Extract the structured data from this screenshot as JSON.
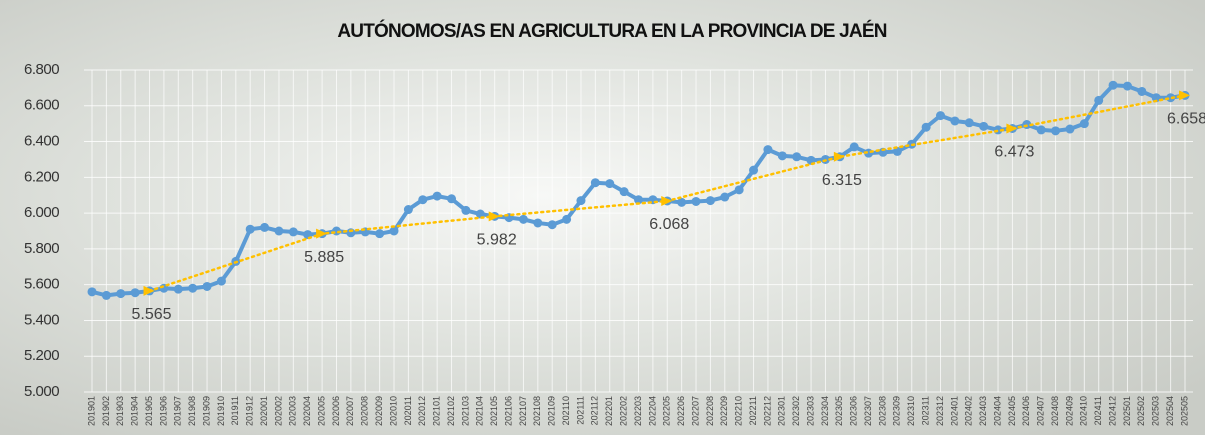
{
  "chart_data": {
    "type": "line",
    "title": "AUTÓNOMOS/AS EN AGRICULTURA EN LA PROVINCIA DE JAÉN",
    "categories": [
      "201901",
      "201902",
      "201903",
      "201904",
      "201905",
      "201906",
      "201907",
      "201908",
      "201909",
      "201910",
      "201911",
      "201912",
      "202001",
      "202002",
      "202003",
      "202004",
      "202005",
      "202006",
      "202007",
      "202008",
      "202009",
      "202010",
      "202011",
      "202012",
      "202101",
      "202102",
      "202103",
      "202104",
      "202105",
      "202106",
      "202107",
      "202108",
      "202109",
      "202110",
      "202111",
      "202112",
      "202201",
      "202202",
      "202203",
      "202204",
      "202205",
      "202206",
      "202207",
      "202208",
      "202209",
      "202210",
      "202211",
      "202212",
      "202301",
      "202302",
      "202303",
      "202304",
      "202305",
      "202306",
      "202307",
      "202308",
      "202309",
      "202310",
      "202311",
      "202312",
      "202401",
      "202402",
      "202403",
      "202404",
      "202405",
      "202406",
      "202407",
      "202408",
      "202409",
      "202410",
      "202411",
      "202412",
      "202501",
      "202502",
      "202503",
      "202504",
      "202505"
    ],
    "values": [
      5560,
      5540,
      5550,
      5555,
      5565,
      5580,
      5575,
      5580,
      5590,
      5620,
      5730,
      5910,
      5920,
      5900,
      5895,
      5880,
      5885,
      5900,
      5890,
      5895,
      5885,
      5900,
      6020,
      6075,
      6095,
      6080,
      6015,
      5995,
      5982,
      5975,
      5965,
      5945,
      5935,
      5965,
      6070,
      6170,
      6165,
      6120,
      6075,
      6075,
      6068,
      6060,
      6065,
      6070,
      6090,
      6130,
      6240,
      6355,
      6320,
      6315,
      6295,
      6300,
      6315,
      6370,
      6335,
      6340,
      6345,
      6385,
      6480,
      6545,
      6515,
      6505,
      6485,
      6465,
      6473,
      6495,
      6465,
      6460,
      6470,
      6500,
      6630,
      6715,
      6710,
      6680,
      6645,
      6645,
      6658
    ],
    "color": "#5b9bd5",
    "trend": {
      "categories": [
        "201905",
        "202005",
        "202105",
        "202205",
        "202305",
        "202405",
        "202505"
      ],
      "values": [
        5565,
        5885,
        5982,
        6068,
        6315,
        6473,
        6658
      ],
      "value_labels": [
        "5.565",
        "5.885",
        "5.982",
        "6.068",
        "6.315",
        "6.473",
        "6.658"
      ],
      "color": "#ffc000"
    },
    "ylim": [
      5000,
      6800
    ],
    "yticks": [
      {
        "value": 5000,
        "label": "5.000"
      },
      {
        "value": 5200,
        "label": "5.200"
      },
      {
        "value": 5400,
        "label": "5.400"
      },
      {
        "value": 5600,
        "label": "5.600"
      },
      {
        "value": 5800,
        "label": "5.800"
      },
      {
        "value": 6000,
        "label": "6.000"
      },
      {
        "value": 6200,
        "label": "6.200"
      },
      {
        "value": 6400,
        "label": "6.400"
      },
      {
        "value": 6600,
        "label": "6.600"
      },
      {
        "value": 6800,
        "label": "6.800"
      }
    ],
    "grid": true
  }
}
